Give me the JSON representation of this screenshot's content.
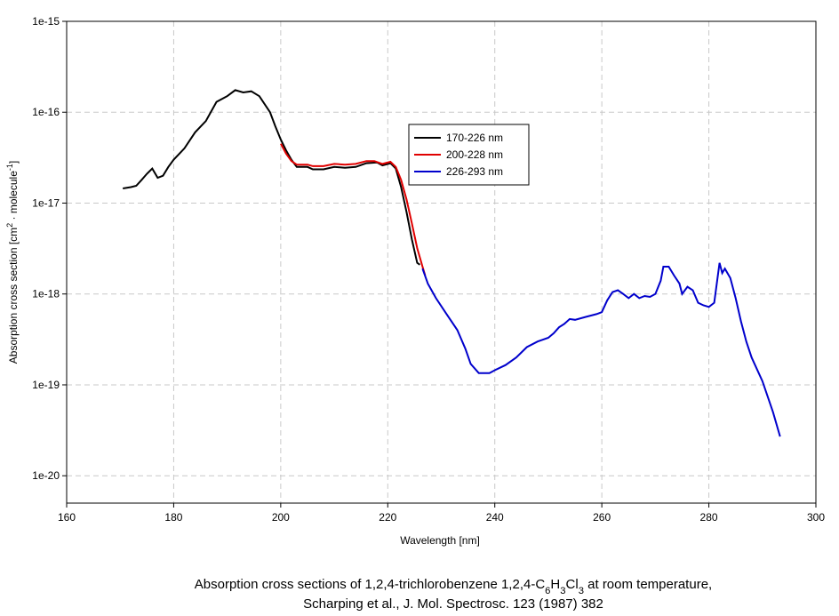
{
  "chart_data": {
    "type": "line",
    "title": [
      [
        {
          "text": "Absorption cross sections of 1,2,4-trichlorobenzene 1,2,4-C"
        },
        {
          "text": "6",
          "sub": true
        },
        {
          "text": "H"
        },
        {
          "text": "3",
          "sub": true
        },
        {
          "text": "Cl"
        },
        {
          "text": "3",
          "sub": true
        },
        {
          "text": " at room temperature,"
        }
      ],
      [
        {
          "text": "Scharping et al., J. Mol. Spectrosc. 123 (1987) 382"
        }
      ]
    ],
    "x_label": "Wavelength [nm]",
    "y_label": [
      {
        "text": "Absorption cross section [cm"
      },
      {
        "text": "2",
        "sup": true
      },
      {
        "text": " · molecule"
      },
      {
        "text": "-1",
        "sup": true
      },
      {
        "text": "]"
      }
    ],
    "xlim": [
      160,
      300
    ],
    "xticks": [
      160,
      180,
      200,
      220,
      240,
      260,
      280,
      300
    ],
    "ylim": [
      5e-21,
      1e-15
    ],
    "yticks": [
      {
        "value": 1e-20,
        "label": "1e-20"
      },
      {
        "value": 1e-19,
        "label": "1e-19"
      },
      {
        "value": 1e-18,
        "label": "1e-18"
      },
      {
        "value": 1e-17,
        "label": "1e-17"
      },
      {
        "value": 1e-16,
        "label": "1e-16"
      },
      {
        "value": 1e-15,
        "label": "1e-15"
      }
    ],
    "log_y": true,
    "grid": true,
    "series": [
      {
        "name": "170-226 nm",
        "color": "#000000",
        "x": [
          170.5,
          172,
          173,
          174,
          175,
          176,
          177,
          178,
          179,
          180,
          182,
          184,
          186,
          188,
          190,
          191.5,
          193,
          194.5,
          196,
          198,
          199,
          200,
          201,
          202,
          203,
          205,
          206,
          208,
          210,
          212,
          214,
          216,
          218,
          219,
          220.5,
          221.5,
          222.5,
          223.5,
          224.5,
          225.5,
          226
        ],
        "values": [
          1.45e-17,
          1.5e-17,
          1.55e-17,
          1.8e-17,
          2.1e-17,
          2.4e-17,
          1.9e-17,
          2e-17,
          2.5e-17,
          3e-17,
          4e-17,
          6e-17,
          8e-17,
          1.3e-16,
          1.5e-16,
          1.75e-16,
          1.65e-16,
          1.7e-16,
          1.5e-16,
          1e-16,
          7e-17,
          5e-17,
          3.8e-17,
          3e-17,
          2.5e-17,
          2.5e-17,
          2.35e-17,
          2.35e-17,
          2.5e-17,
          2.45e-17,
          2.5e-17,
          2.75e-17,
          2.8e-17,
          2.6e-17,
          2.75e-17,
          2.4e-17,
          1.5e-17,
          8e-18,
          4e-18,
          2.2e-18,
          2.1e-18
        ]
      },
      {
        "name": "200-228 nm",
        "color": "#e00000",
        "x": [
          200,
          201,
          202,
          203,
          205,
          206,
          208,
          210,
          212,
          214,
          216,
          217.5,
          219,
          220.5,
          221.5,
          222.5,
          223.5,
          224.5,
          225.5,
          226.5,
          227
        ],
        "values": [
          4.5e-17,
          3.5e-17,
          2.9e-17,
          2.65e-17,
          2.65e-17,
          2.55e-17,
          2.55e-17,
          2.7e-17,
          2.65e-17,
          2.7e-17,
          2.9e-17,
          2.9e-17,
          2.7e-17,
          2.85e-17,
          2.5e-17,
          1.8e-17,
          1.1e-17,
          6e-18,
          3.2e-18,
          2e-18,
          1.6e-18
        ]
      },
      {
        "name": "226-293 nm",
        "color": "#0000cc",
        "x": [
          226.5,
          227.5,
          229,
          231,
          233,
          234.5,
          235.5,
          237,
          239,
          240,
          242,
          244,
          246,
          248,
          250,
          251,
          252,
          253,
          254,
          255,
          257,
          259,
          260,
          261,
          262,
          263,
          264,
          265,
          266,
          267,
          268,
          269,
          270,
          271,
          271.5,
          272.5,
          273.5,
          274.5,
          275,
          276,
          277,
          278,
          279,
          280,
          281,
          282,
          282.5,
          283,
          284,
          285,
          286,
          287,
          288,
          290,
          292,
          293.3
        ],
        "values": [
          1.9e-18,
          1.3e-18,
          9e-19,
          6e-19,
          4e-19,
          2.5e-19,
          1.7e-19,
          1.35e-19,
          1.35e-19,
          1.45e-19,
          1.65e-19,
          2e-19,
          2.6e-19,
          3e-19,
          3.3e-19,
          3.7e-19,
          4.3e-19,
          4.7e-19,
          5.3e-19,
          5.2e-19,
          5.6e-19,
          6e-19,
          6.3e-19,
          8.5e-19,
          1.05e-18,
          1.1e-18,
          1e-18,
          9e-19,
          1e-18,
          9e-19,
          9.5e-19,
          9.3e-19,
          1e-18,
          1.4e-18,
          2e-18,
          2e-18,
          1.6e-18,
          1.3e-18,
          1e-18,
          1.2e-18,
          1.1e-18,
          8e-19,
          7.5e-19,
          7.2e-19,
          8e-19,
          2.2e-18,
          1.7e-18,
          1.9e-18,
          1.5e-18,
          9e-19,
          5e-19,
          3e-19,
          2e-19,
          1.1e-19,
          5e-20,
          2.7e-20
        ]
      }
    ]
  }
}
